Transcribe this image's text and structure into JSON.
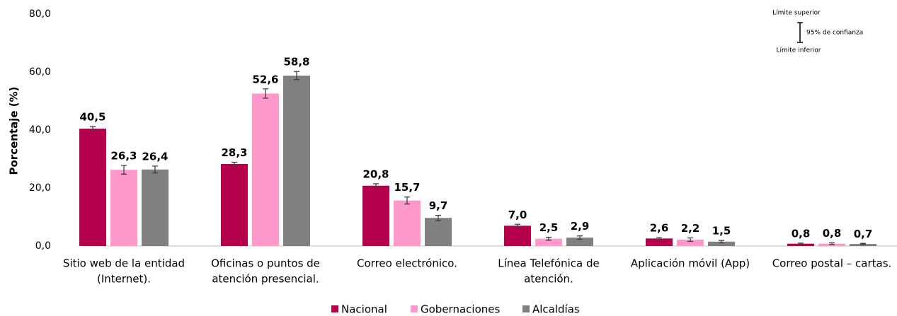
{
  "chart_data": {
    "type": "bar",
    "y_label": "Porcentaje (%)",
    "categories": [
      [
        "Sitio web de la entidad",
        "(Internet)."
      ],
      [
        "Oficinas o puntos de",
        "atención presencial."
      ],
      [
        "Correo electrónico."
      ],
      [
        "Línea Telefónica de",
        "atención."
      ],
      [
        "Aplicación móvil (App)"
      ],
      [
        "Correo postal – cartas."
      ]
    ],
    "series": [
      {
        "name": "Nacional",
        "color": "#b5004b",
        "values": [
          40.5,
          28.3,
          20.8,
          7.0,
          2.6,
          0.8
        ],
        "value_labels": [
          "40,5",
          "28,3",
          "20,8",
          "7,0",
          "2,6",
          "0,8"
        ],
        "errors": [
          0.7,
          0.6,
          0.7,
          0.5,
          0.3,
          0.2
        ]
      },
      {
        "name": "Gobernaciones",
        "color": "#ff99cc",
        "values": [
          26.3,
          52.6,
          15.7,
          2.5,
          2.2,
          0.8
        ],
        "value_labels": [
          "26,3",
          "52,6",
          "15,7",
          "2,5",
          "2,2",
          "0,8"
        ],
        "errors": [
          1.5,
          1.6,
          1.2,
          0.5,
          0.6,
          0.3
        ]
      },
      {
        "name": "Alcaldías",
        "color": "#808080",
        "values": [
          26.4,
          58.8,
          9.7,
          2.9,
          1.5,
          0.7
        ],
        "value_labels": [
          "26,4",
          "58,8",
          "9,7",
          "2,9",
          "1,5",
          "0,7"
        ],
        "errors": [
          1.2,
          1.4,
          0.9,
          0.6,
          0.4,
          0.2
        ]
      }
    ],
    "ylim": [
      0,
      80
    ],
    "yticks": [
      {
        "value": 0,
        "label": "0,0"
      },
      {
        "value": 20,
        "label": "20,0"
      },
      {
        "value": 40,
        "label": "40,0"
      },
      {
        "value": 60,
        "label": "60,0"
      },
      {
        "value": 80,
        "label": "80,0"
      }
    ],
    "annotations": [
      "Límite superior",
      "95% de confianza",
      "Límite inferior"
    ],
    "legend": "bottom"
  }
}
